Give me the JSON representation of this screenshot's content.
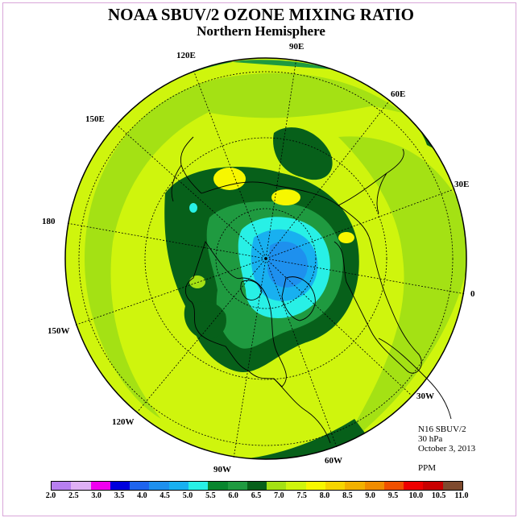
{
  "title": "NOAA SBUV/2 OZONE MIXING RATIO",
  "subtitle": "Northern Hemisphere",
  "longitude_labels": [
    "90E",
    "60E",
    "30E",
    "0",
    "30W",
    "60W",
    "90W",
    "120W",
    "150W",
    "180",
    "150E",
    "120E"
  ],
  "info": {
    "satellite": "N16 SBUV/2",
    "level": "30 hPa",
    "date": "October 3, 2013",
    "units": "PPM"
  },
  "colorbar": {
    "colors": [
      "#b77ff0",
      "#dfb0f5",
      "#f000f0",
      "#0000dd",
      "#1e64ee",
      "#1e90ee",
      "#18b0f0",
      "#28f0e6",
      "#08852e",
      "#1f9a40",
      "#07601a",
      "#a4e114",
      "#cff50d",
      "#f7f700",
      "#f6d500",
      "#f2b100",
      "#f08c00",
      "#f05000",
      "#ee0000",
      "#c80000",
      "#7e4a2e"
    ],
    "labels": [
      "2.0",
      "2.5",
      "3.0",
      "3.5",
      "4.0",
      "4.5",
      "5.0",
      "5.5",
      "6.0",
      "6.5",
      "7.0",
      "7.5",
      "8.0",
      "8.5",
      "9.0",
      "9.5",
      "10.0",
      "10.5",
      "11.0"
    ]
  },
  "map_colors": {
    "dark_green": "#07601a",
    "green": "#1f9a40",
    "light_green": "#a4e114",
    "yellow_green": "#cff50d",
    "yellow": "#f7f700",
    "cyan": "#28f0e6",
    "light_blue": "#18b0f0",
    "blue": "#1e90ee",
    "mid_green": "#08852e"
  }
}
